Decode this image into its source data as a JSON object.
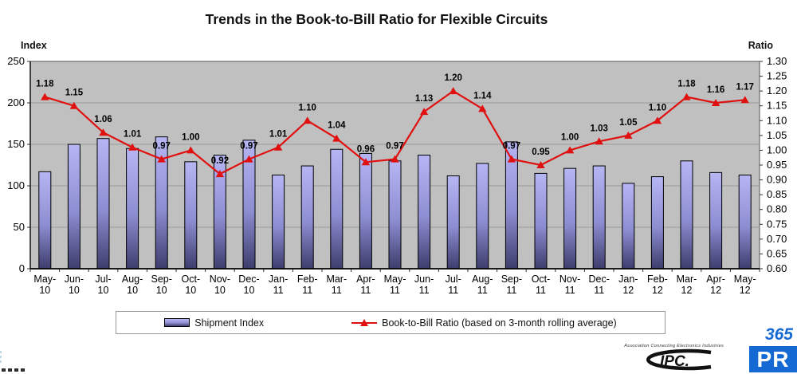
{
  "title": "Trends in the Book-to-Bill Ratio for Flexible Circuits",
  "chart_data": {
    "type": "bar",
    "title": "Trends in the Book-to-Bill Ratio for Flexible Circuits",
    "left_axis_label": "Index",
    "right_axis_label": "Ratio",
    "left_ylim": [
      0,
      250
    ],
    "right_ylim": [
      0.6,
      1.3
    ],
    "left_ticks": [
      250,
      200,
      150,
      100,
      50,
      0
    ],
    "right_ticks": [
      1.3,
      1.25,
      1.2,
      1.15,
      1.1,
      1.05,
      1.0,
      0.95,
      0.9,
      0.85,
      0.8,
      0.75,
      0.7,
      0.65,
      0.6
    ],
    "grid": true,
    "legend_position": "bottom",
    "categories": [
      "May-10",
      "Jun-10",
      "Jul-10",
      "Aug-10",
      "Sep-10",
      "Oct-10",
      "Nov-10",
      "Dec-10",
      "Jan-11",
      "Feb-11",
      "Mar-11",
      "Apr-11",
      "May-11",
      "Jun-11",
      "Jul-11",
      "Aug-11",
      "Sep-11",
      "Oct-11",
      "Nov-11",
      "Dec-11",
      "Jan-12",
      "Feb-12",
      "Mar-12",
      "Apr-12",
      "May-12"
    ],
    "series": [
      {
        "name": "Shipment Index",
        "type": "bar",
        "axis": "left",
        "values": [
          117,
          150,
          157,
          145,
          159,
          129,
          137,
          155,
          113,
          124,
          144,
          139,
          130,
          137,
          112,
          127,
          153,
          115,
          121,
          124,
          103,
          111,
          130,
          116,
          113
        ]
      },
      {
        "name": "Book-to-Bill Ratio (based on 3-month rolling average)",
        "type": "line",
        "axis": "right",
        "values": [
          1.18,
          1.15,
          1.06,
          1.01,
          0.97,
          1.0,
          0.92,
          0.97,
          1.01,
          1.1,
          1.04,
          0.96,
          0.97,
          1.13,
          1.2,
          1.14,
          0.97,
          0.95,
          1.0,
          1.03,
          1.05,
          1.1,
          1.18,
          1.16,
          1.17
        ]
      }
    ]
  },
  "legend": {
    "items": [
      {
        "label": "Shipment Index",
        "swatch": "bar"
      },
      {
        "label": "Book-to-Bill Ratio (based on 3-month rolling average)",
        "swatch": "line-triangle"
      }
    ]
  },
  "footer": {
    "ipc_tagline": "Association Connecting Electronics Industries",
    "ipc_name": "IPC.",
    "logo_365": "365",
    "logo_pr": "PR"
  },
  "colors": {
    "plot_bg": "#c0c0c0",
    "grid": "#9a9a9a",
    "bar_top": "#b6b6f4",
    "bar_mid": "#8d8dd2",
    "bar_bottom": "#3d3d6d",
    "bar_border": "#000000",
    "line": "#e01010",
    "logo_blue": "#1569d3"
  }
}
